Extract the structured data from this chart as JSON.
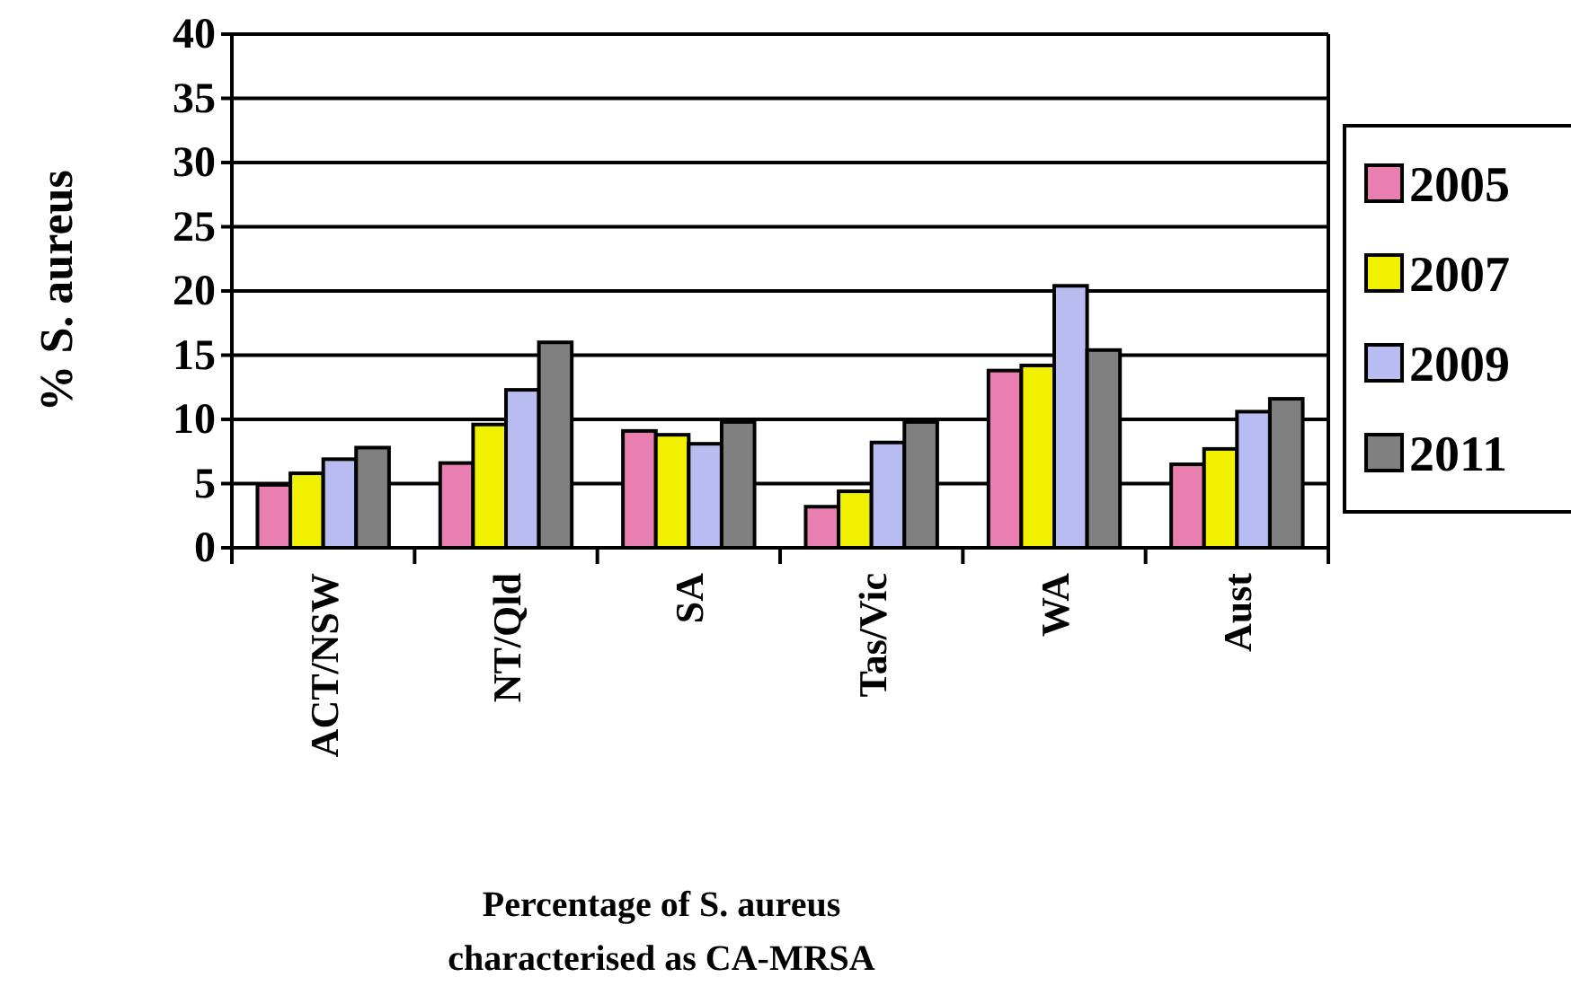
{
  "chart_data": {
    "type": "bar",
    "xlabel": "Percentage of S. aureus characterised as CA-MRSA",
    "ylabel": "% S. aureus",
    "categories": [
      "ACT/NSW",
      "NT/Qld",
      "SA",
      "Tas/Vic",
      "WA",
      "Aust"
    ],
    "series": [
      {
        "name": "2005",
        "color": "#e87fb0",
        "values": [
          4.9,
          6.6,
          9.1,
          3.2,
          13.8,
          6.5
        ]
      },
      {
        "name": "2007",
        "color": "#f0f000",
        "values": [
          5.8,
          9.6,
          8.8,
          4.4,
          14.2,
          7.7
        ]
      },
      {
        "name": "2009",
        "color": "#b8bcf0",
        "values": [
          6.9,
          12.3,
          8.1,
          8.2,
          20.4,
          10.6
        ]
      },
      {
        "name": "2011",
        "color": "#808080",
        "values": [
          7.8,
          16.0,
          9.8,
          9.8,
          15.4,
          11.6
        ]
      }
    ],
    "ylim": [
      0,
      40
    ],
    "yticks": [
      0,
      5,
      10,
      15,
      20,
      25,
      30,
      35,
      40
    ],
    "grid": "y",
    "legend": "right"
  }
}
